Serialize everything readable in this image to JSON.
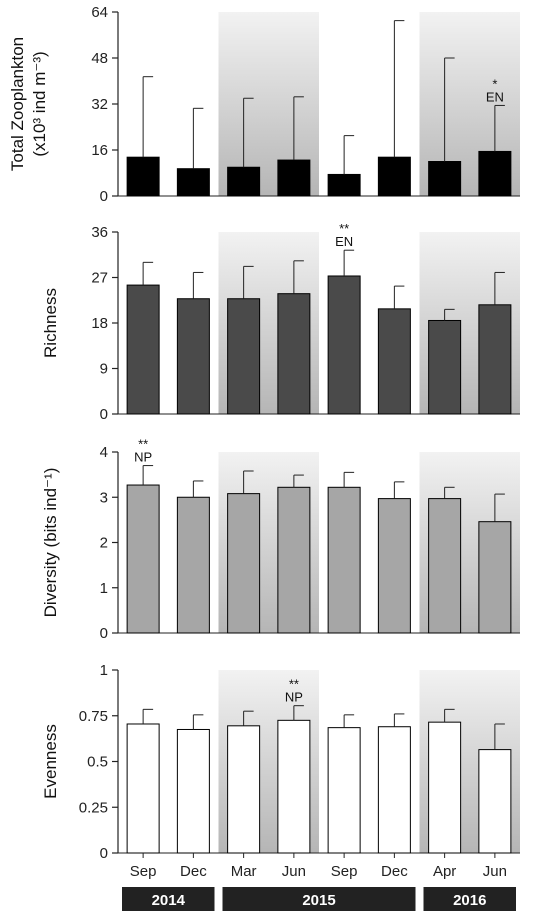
{
  "chart_data": [
    {
      "type": "bar",
      "ylabel_lines": [
        "Total Zooplankton",
        "(x10³ ind m⁻³)"
      ],
      "ylim": [
        0,
        64
      ],
      "yticks": [
        "0",
        "16",
        "32",
        "48",
        "64"
      ],
      "bar_color": "#000000",
      "categories": [
        "Sep",
        "Dec",
        "Mar",
        "Jun",
        "Sep",
        "Dec",
        "Apr",
        "Jun"
      ],
      "values": [
        13.5,
        9.5,
        10,
        12.5,
        7.5,
        13.5,
        12,
        15.5
      ],
      "errors": [
        28,
        21,
        24,
        22,
        13.5,
        47.5,
        36,
        16
      ],
      "annotations": [
        {
          "index": 7,
          "lines": [
            "*",
            "EN"
          ]
        }
      ]
    },
    {
      "type": "bar",
      "ylabel_lines": [
        "Richness"
      ],
      "ylim": [
        0,
        36
      ],
      "yticks": [
        "0",
        "9",
        "18",
        "27",
        "36"
      ],
      "bar_color": "#4a4a4a",
      "categories": [
        "Sep",
        "Dec",
        "Mar",
        "Jun",
        "Sep",
        "Dec",
        "Apr",
        "Jun"
      ],
      "values": [
        25.5,
        22.8,
        22.8,
        23.8,
        27.3,
        20.8,
        18.5,
        21.6
      ],
      "errors": [
        4.5,
        5.2,
        6.4,
        6.5,
        5.1,
        4.5,
        2.2,
        6.4
      ],
      "annotations": [
        {
          "index": 4,
          "lines": [
            "**",
            "EN"
          ]
        }
      ]
    },
    {
      "type": "bar",
      "ylabel_lines": [
        "Diversity (bits ind⁻¹)"
      ],
      "ylim": [
        0,
        4
      ],
      "yticks": [
        "0",
        "1",
        "2",
        "3",
        "4"
      ],
      "bar_color": "#a6a6a6",
      "categories": [
        "Sep",
        "Dec",
        "Mar",
        "Jun",
        "Sep",
        "Dec",
        "Apr",
        "Jun"
      ],
      "values": [
        3.27,
        3.0,
        3.08,
        3.22,
        3.22,
        2.97,
        2.97,
        2.46
      ],
      "errors": [
        0.43,
        0.36,
        0.5,
        0.27,
        0.33,
        0.37,
        0.25,
        0.61
      ],
      "annotations": [
        {
          "index": 0,
          "lines": [
            "**",
            "NP"
          ]
        }
      ]
    },
    {
      "type": "bar",
      "ylabel_lines": [
        "Evenness"
      ],
      "ylim": [
        0,
        1
      ],
      "yticks": [
        "0",
        "0.25",
        "0.5",
        "0.75",
        "1"
      ],
      "bar_color": "#ffffff",
      "categories": [
        "Sep",
        "Dec",
        "Mar",
        "Jun",
        "Sep",
        "Dec",
        "Apr",
        "Jun"
      ],
      "values": [
        0.705,
        0.675,
        0.695,
        0.725,
        0.685,
        0.69,
        0.715,
        0.565
      ],
      "errors": [
        0.08,
        0.08,
        0.08,
        0.08,
        0.07,
        0.07,
        0.07,
        0.14
      ],
      "annotations": [
        {
          "index": 3,
          "lines": [
            "**",
            "NP"
          ]
        }
      ]
    }
  ],
  "x_axis": {
    "months": [
      "Sep",
      "Dec",
      "Mar",
      "Jun",
      "Sep",
      "Dec",
      "Apr",
      "Jun"
    ],
    "years": [
      {
        "label": "2014",
        "start": 0,
        "end": 1
      },
      {
        "label": "2015",
        "start": 2,
        "end": 5
      },
      {
        "label": "2016",
        "start": 6,
        "end": 7
      }
    ]
  },
  "shaded_groups": [
    {
      "start": 2,
      "end": 3
    },
    {
      "start": 6,
      "end": 7
    }
  ],
  "colors": {
    "shade_dark": "#b8b8b8",
    "shade_light": "#f4f4f4",
    "year_bar": "#222222"
  }
}
